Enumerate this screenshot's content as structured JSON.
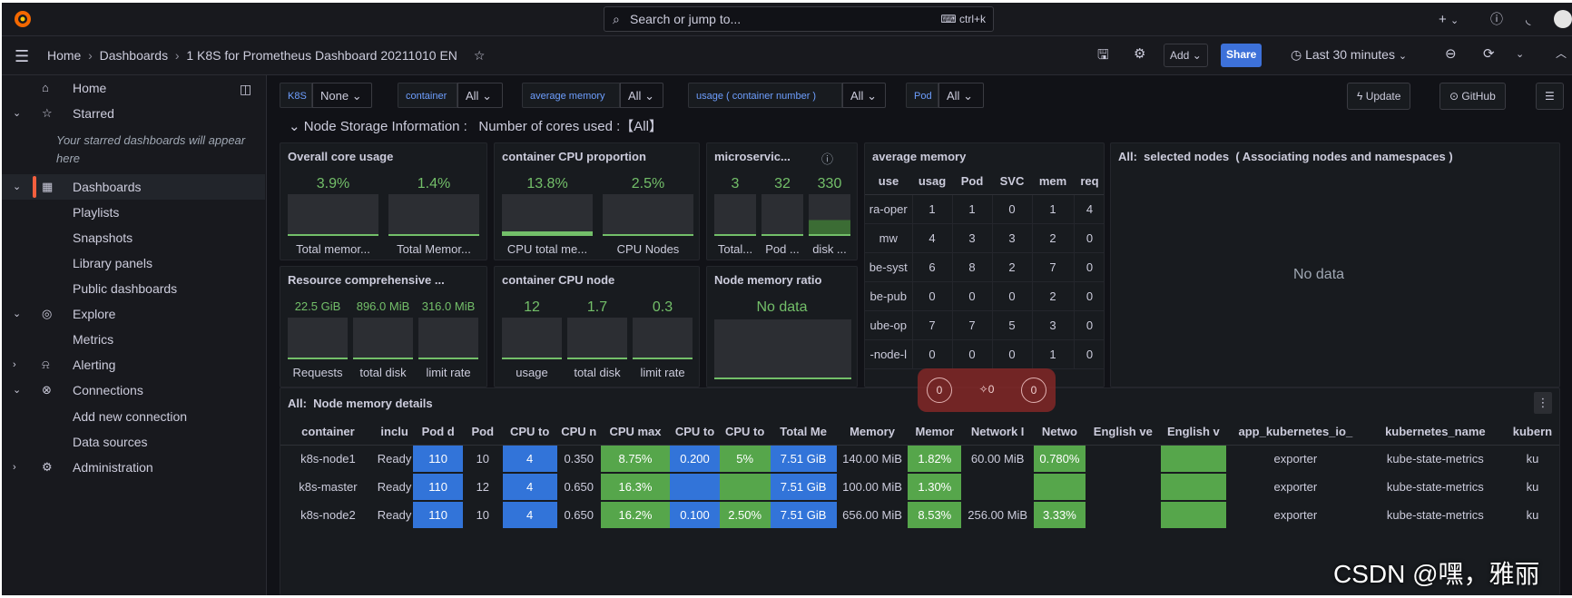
{
  "topbar": {
    "search_placeholder": "Search or jump to...",
    "shortcut": "ctrl+k",
    "plus_label": "+",
    "chevron": "⌄"
  },
  "breadcrumb": {
    "home": "Home",
    "dashboards": "Dashboards",
    "current": "1 K8S for Prometheus Dashboard 20211010 EN"
  },
  "toolbar": {
    "add_label": "Add",
    "share_label": "Share",
    "time_range": "Last 30 minutes"
  },
  "sidebar": {
    "home": "Home",
    "starred": "Starred",
    "starred_note": "Your starred dashboards will appear here",
    "dashboards": "Dashboards",
    "playlists": "Playlists",
    "snapshots": "Snapshots",
    "library_panels": "Library panels",
    "public_dashboards": "Public dashboards",
    "explore": "Explore",
    "metrics": "Metrics",
    "alerting": "Alerting",
    "connections": "Connections",
    "add_new_connection": "Add new connection",
    "data_sources": "Data sources",
    "administration": "Administration"
  },
  "variables": [
    {
      "label": "K8S",
      "value": "None"
    },
    {
      "label": "container",
      "value": "All"
    },
    {
      "label": "average memory",
      "value": "All"
    },
    {
      "label": "usage ( container number )",
      "value": "All"
    },
    {
      "label": "Pod",
      "value": "All"
    }
  ],
  "buttons": {
    "update": "Update",
    "github": "GitHub"
  },
  "row_title": "Node Storage Information :   Number of cores used :【All】",
  "panels": {
    "overall": {
      "title": "Overall core usage",
      "values": [
        "3.9%",
        "1.4%"
      ],
      "labels": [
        "Total memor...",
        "Total Memor..."
      ],
      "fills": [
        0.04,
        0.02
      ]
    },
    "cpu_prop": {
      "title": "container CPU proportion",
      "values": [
        "13.8%",
        "2.5%"
      ],
      "labels": [
        "CPU total me...",
        "CPU Nodes"
      ],
      "fills": [
        0.14,
        0.03
      ]
    },
    "micro": {
      "title": "microservic...",
      "values": [
        "3",
        "32",
        "330"
      ],
      "labels": [
        "Total...",
        "Pod ...",
        "disk ..."
      ],
      "fills": [
        0.03,
        0.03,
        0.33
      ]
    },
    "resource": {
      "title": "Resource comprehensive ...",
      "values": [
        "22.5 GiB",
        "896.0 MiB",
        "316.0 MiB"
      ],
      "labels": [
        "Requests",
        "total disk",
        "limit rate"
      ],
      "fills": [
        0.03,
        0.03,
        0.03
      ]
    },
    "cpu_node": {
      "title": "container CPU node",
      "values": [
        "12",
        "1.7",
        "0.3"
      ],
      "labels": [
        "usage",
        "total disk",
        "limit rate"
      ],
      "fills": [
        0.03,
        0.03,
        0.03
      ]
    },
    "mem_ratio": {
      "title": "Node memory ratio",
      "nodata": "No data"
    },
    "avg_mem": {
      "title": "average memory",
      "headers": [
        "use",
        "usag",
        "Pod",
        "SVC",
        "mem",
        "req"
      ],
      "rows": [
        [
          "ra-oper",
          "1",
          "1",
          "0",
          "1",
          "4"
        ],
        [
          "mw",
          "4",
          "3",
          "3",
          "2",
          "0"
        ],
        [
          "be-syst",
          "6",
          "8",
          "2",
          "7",
          "0"
        ],
        [
          "be-pub",
          "0",
          "0",
          "0",
          "2",
          "0"
        ],
        [
          "ube-op",
          "7",
          "7",
          "5",
          "3",
          "0"
        ],
        [
          "-node-l",
          "0",
          "0",
          "0",
          "1",
          "0"
        ]
      ]
    },
    "selected": {
      "title": "All:  selected nodes  ( Associating nodes and namespaces )",
      "nodata": "No data"
    },
    "details": {
      "title": "All:  Node memory details",
      "headers": [
        "container",
        "inclu",
        "Pod d",
        "Pod",
        "CPU to",
        "CPU n",
        "CPU max",
        "CPU to",
        "CPU to",
        "Total Me",
        "Memory",
        "Memor",
        "Network I",
        "Netwo",
        "English ve",
        "English v",
        "app_kubernetes_io_",
        "kubernetes_name",
        "kubern"
      ],
      "rows": [
        [
          "k8s-node1",
          "Ready",
          "110",
          "10",
          "4",
          "0.350",
          "8.75%",
          "0.200",
          "5%",
          "7.51 GiB",
          "140.00 MiB",
          "1.82%",
          "60.00 MiB",
          "0.780%",
          "",
          "",
          "exporter",
          "kube-state-metrics",
          "ku"
        ],
        [
          "k8s-master",
          "Ready",
          "110",
          "12",
          "4",
          "0.650",
          "16.3%",
          "",
          "",
          "7.51 GiB",
          "100.00 MiB",
          "1.30%",
          "",
          "",
          "",
          "",
          "exporter",
          "kube-state-metrics",
          "ku"
        ],
        [
          "k8s-node2",
          "Ready",
          "110",
          "10",
          "4",
          "0.650",
          "16.2%",
          "0.100",
          "2.50%",
          "7.51 GiB",
          "656.00 MiB",
          "8.53%",
          "256.00 MiB",
          "3.33%",
          "",
          "",
          "exporter",
          "kube-state-metrics",
          "ku"
        ]
      ]
    }
  },
  "overlay": {
    "a": "0",
    "b": "0",
    "c": "0"
  },
  "watermark": "CSDN @嘿，雅丽",
  "colors": {
    "accent": "#3274d9",
    "green": "#73bf69",
    "active": "#f55f3e"
  }
}
